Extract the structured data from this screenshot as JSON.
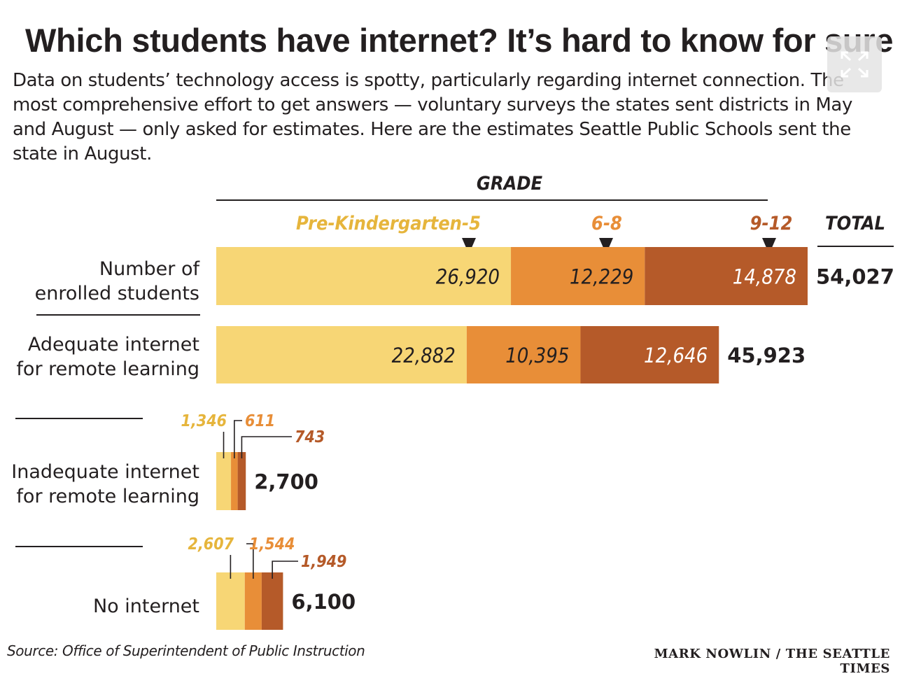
{
  "title": "Which students have internet? It’s hard to know for sure",
  "subtitle": "Data on students’ technology access is spotty, particularly regarding internet connection. The most comprehensive effort to get answers — voluntary surveys the states sent districts in May and August — only asked for estimates. Here are the estimates Seattle Public Schools sent the state in August.",
  "source": "Source: Office of Superintendent of Public Instruction",
  "credit": "MARK NOWLIN / THE SEATTLE TIMES",
  "icons": {
    "expand": "expand-icon"
  },
  "colors": {
    "prek5": "#f7d675",
    "g6_8": "#e88e38",
    "g9_12": "#b55a29",
    "prek5_label": "#e6b53c",
    "text": "#231f20"
  },
  "chart_data": {
    "type": "bar",
    "stacked": true,
    "orientation": "horizontal",
    "group_header": "GRADE",
    "total_header": "TOTAL",
    "series": [
      {
        "name": "Pre-Kindergarten-5",
        "values": [
          26920,
          22882,
          1346,
          2607
        ],
        "labels": [
          "26,920",
          "22,882",
          "1,346",
          "2,607"
        ]
      },
      {
        "name": "6-8",
        "values": [
          12229,
          10395,
          611,
          1544
        ],
        "labels": [
          "12,229",
          "10,395",
          "611",
          "1,544"
        ]
      },
      {
        "name": "9-12",
        "values": [
          14878,
          12646,
          743,
          1949
        ],
        "labels": [
          "14,878",
          "12,646",
          "743",
          "1,949"
        ]
      }
    ],
    "categories": [
      {
        "label": [
          "Number of",
          "enrolled students"
        ],
        "total": "54,027"
      },
      {
        "label": [
          "Adequate internet",
          "for remote learning"
        ],
        "total": "45,923"
      },
      {
        "label": [
          "Inadequate internet",
          "for remote learning"
        ],
        "total": "2,700"
      },
      {
        "label": [
          "No internet"
        ],
        "total": "6,100"
      }
    ]
  }
}
